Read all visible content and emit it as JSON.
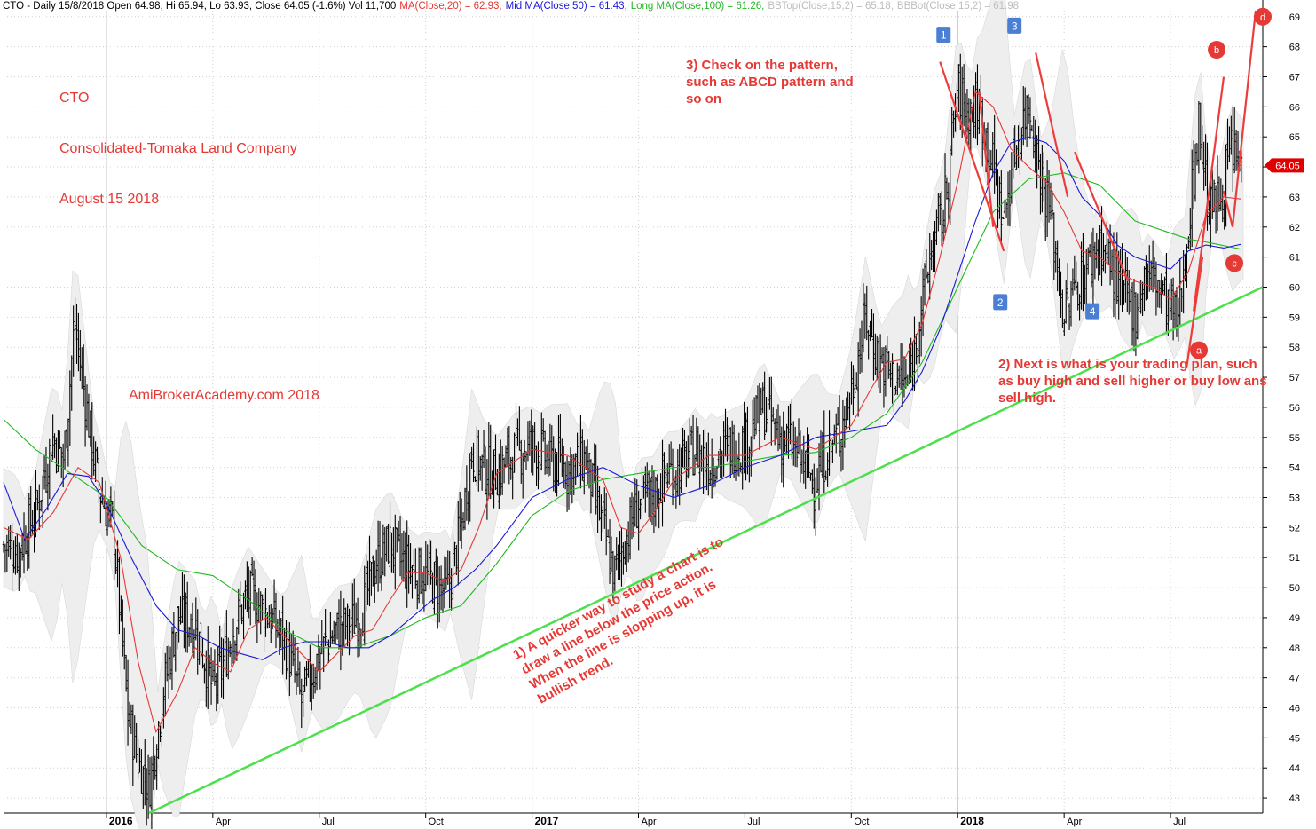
{
  "header": {
    "ticker_line": "CTO - Daily 15/8/2018 Open 64.98, Hi 65.94, Lo 63.93, Close 64.05 (-1.6%) Vol 11,700",
    "ma20": "MA(Close,20) = 62.93,",
    "ma50": "Mid MA(Close,50) = 61.43,",
    "ma100": "Long MA(Close,100) = 61.26,",
    "bbtop": "BBTop(Close,15,2) = 65.18,",
    "bbbot": "BBBot(Close,15,2) = 61.98"
  },
  "title_block": {
    "line1": "CTO",
    "line2": "Consolidated-Tomaka Land Company",
    "line3": "August 15 2018"
  },
  "watermark": "AmiBrokerAcademy.com  2018",
  "annotations": {
    "note1": "1) A quicker way to study a chart is to\ndraw a line below the price action.\nWhen the line is slopping up, it is\nbullish trend.",
    "note2": "2) Next is what is your trading plan, such\nas buy high and sell higher or buy low ans\nsell high.",
    "note3": "3) Check on the pattern,\nsuch as ABCD pattern and\nso on"
  },
  "colors": {
    "price": "#000000",
    "ma20": "#e53935",
    "ma50": "#1a1ad6",
    "ma100": "#22b822",
    "band": "#d9d9d9",
    "trendline": "#4ce04c",
    "pattern": "#ec3d3d",
    "wave_box": "#4a7fd4",
    "abcd_circle": "#e53935",
    "last_price_tag": "#e00000",
    "grid": "#d0d0d0"
  },
  "chart_data": {
    "type": "line",
    "ylim": [
      42.5,
      69.2
    ],
    "y_ticks": [
      43,
      44,
      45,
      46,
      47,
      48,
      49,
      50,
      51,
      52,
      53,
      54,
      55,
      56,
      57,
      58,
      59,
      60,
      61,
      62,
      63,
      64,
      65,
      66,
      67,
      68,
      69
    ],
    "x_ticks": [
      {
        "label": "2016",
        "x": 0.0,
        "bold": true
      },
      {
        "label": "Apr",
        "x": 3.0
      },
      {
        "label": "Jul",
        "x": 6.0
      },
      {
        "label": "Oct",
        "x": 9.0
      },
      {
        "label": "2017",
        "x": 12.0,
        "bold": true
      },
      {
        "label": "Apr",
        "x": 15.0
      },
      {
        "label": "Jul",
        "x": 18.0
      },
      {
        "label": "Oct",
        "x": 21.0
      },
      {
        "label": "2018",
        "x": 24.0,
        "bold": true
      },
      {
        "label": "Apr",
        "x": 27.0
      },
      {
        "label": "Jul",
        "x": 30.0
      }
    ],
    "xlim": [
      -2.9,
      32.6
    ],
    "x_unit": "months from Jan 2016",
    "price": {
      "x": [
        -2.9,
        -2.5,
        -2.0,
        -1.5,
        -1.2,
        -0.9,
        -0.5,
        -0.2,
        0.2,
        0.6,
        0.9,
        1.2,
        1.6,
        2.0,
        2.5,
        3.0,
        3.3,
        3.6,
        4.0,
        4.5,
        5.0,
        5.5,
        6.0,
        6.5,
        6.9,
        7.2,
        7.6,
        8.0,
        8.4,
        8.8,
        9.2,
        9.6,
        10.0,
        10.3,
        10.6,
        11.0,
        11.5,
        12.0,
        12.5,
        13.0,
        13.5,
        14.0,
        14.3,
        14.6,
        15.0,
        15.4,
        15.8,
        16.2,
        16.6,
        17.0,
        17.5,
        18.0,
        18.5,
        19.0,
        19.3,
        19.6,
        20.0,
        20.3,
        20.6,
        21.0,
        21.4,
        21.8,
        22.2,
        22.6,
        23.0,
        23.3,
        23.6,
        24.0,
        24.3,
        24.6,
        25.0,
        25.3,
        25.6,
        26.0,
        26.3,
        26.6,
        27.0,
        27.3,
        27.6,
        28.0,
        28.3,
        28.6,
        29.0,
        29.3,
        29.6,
        29.9,
        30.2,
        30.5,
        30.8,
        31.1,
        31.4,
        31.7,
        32.0,
        32.5
      ],
      "close": [
        51.4,
        51.2,
        52.5,
        55.0,
        54.2,
        58.8,
        55.5,
        53.2,
        52.0,
        45.8,
        44.2,
        43.3,
        46.5,
        49.0,
        48.8,
        46.6,
        47.5,
        48.7,
        49.8,
        49.2,
        48.3,
        46.2,
        47.8,
        48.6,
        48.8,
        49.2,
        50.8,
        51.5,
        50.8,
        50.5,
        50.2,
        49.8,
        52.0,
        54.5,
        54.0,
        53.8,
        54.5,
        54.8,
        54.2,
        54.0,
        54.3,
        52.0,
        50.4,
        51.5,
        52.8,
        53.0,
        53.8,
        54.0,
        54.6,
        54.2,
        54.6,
        54.8,
        56.0,
        55.0,
        54.8,
        54.2,
        53.5,
        54.5,
        55.0,
        56.5,
        59.0,
        57.5,
        57.0,
        56.8,
        59.5,
        61.5,
        62.5,
        66.5,
        65.8,
        66.0,
        64.0,
        62.2,
        64.5,
        66.2,
        64.0,
        62.5,
        59.0,
        60.0,
        60.5,
        61.5,
        60.8,
        59.8,
        59.2,
        60.5,
        60.2,
        59.5,
        58.8,
        62.0,
        65.5,
        62.5,
        63.0,
        64.5,
        64.05,
        64.05
      ]
    },
    "ma20": {
      "x": [
        -2.9,
        -2.2,
        -1.5,
        -0.8,
        -0.2,
        0.4,
        0.9,
        1.4,
        2.0,
        2.5,
        3.0,
        3.5,
        4.0,
        4.5,
        5.0,
        5.5,
        6.0,
        6.5,
        7.0,
        7.5,
        8.0,
        8.5,
        9.0,
        9.5,
        10.0,
        10.5,
        11.0,
        12.0,
        13.0,
        14.0,
        14.5,
        15.0,
        15.5,
        16.0,
        17.0,
        18.0,
        19.0,
        20.0,
        21.0,
        21.5,
        22.0,
        22.5,
        23.0,
        23.5,
        24.0,
        24.5,
        25.0,
        25.5,
        26.0,
        26.5,
        27.0,
        27.5,
        28.0,
        28.5,
        29.0,
        29.5,
        30.0,
        30.5,
        31.0,
        31.5,
        32.0
      ],
      "y": [
        52.0,
        51.6,
        52.5,
        54.0,
        53.5,
        51.0,
        47.5,
        45.2,
        46.5,
        48.0,
        47.5,
        47.2,
        48.6,
        49.0,
        48.4,
        47.8,
        47.2,
        47.8,
        48.4,
        48.6,
        49.6,
        50.5,
        50.5,
        50.2,
        50.6,
        52.0,
        53.8,
        54.6,
        54.4,
        53.6,
        52.0,
        51.8,
        52.6,
        53.6,
        54.4,
        54.4,
        55.0,
        54.6,
        55.4,
        56.5,
        57.5,
        57.6,
        58.8,
        61.0,
        63.5,
        66.5,
        66.0,
        64.6,
        64.0,
        63.5,
        62.5,
        61.2,
        61.0,
        60.5,
        60.2,
        60.0,
        59.6,
        60.5,
        62.4,
        63.0,
        62.93
      ]
    },
    "ma50": {
      "x": [
        -2.9,
        -2.3,
        -1.7,
        -1.1,
        -0.5,
        0.0,
        0.7,
        1.4,
        2.0,
        2.6,
        3.2,
        3.8,
        4.4,
        5.0,
        5.6,
        6.2,
        6.8,
        7.4,
        8.0,
        8.6,
        9.2,
        9.8,
        10.4,
        11.0,
        12.0,
        13.0,
        14.0,
        15.0,
        16.0,
        17.0,
        18.0,
        19.0,
        20.0,
        21.0,
        22.0,
        22.5,
        23.0,
        23.5,
        24.0,
        24.5,
        25.0,
        25.5,
        26.0,
        26.5,
        27.0,
        27.5,
        28.0,
        28.5,
        29.0,
        29.5,
        30.0,
        30.5,
        31.0,
        31.5,
        32.0
      ],
      "y": [
        53.5,
        51.6,
        52.6,
        53.8,
        53.7,
        52.8,
        51.0,
        49.4,
        48.6,
        48.4,
        48.0,
        47.8,
        47.6,
        48.0,
        48.2,
        48.2,
        48.0,
        48.0,
        48.4,
        49.0,
        49.6,
        50.0,
        50.6,
        51.4,
        53.0,
        53.6,
        54.0,
        53.4,
        53.0,
        53.4,
        54.0,
        54.4,
        55.0,
        55.2,
        55.4,
        56.2,
        57.2,
        58.6,
        60.4,
        62.2,
        63.8,
        64.8,
        65.0,
        64.8,
        64.2,
        63.0,
        62.4,
        61.4,
        61.0,
        60.8,
        60.6,
        61.2,
        61.4,
        61.3,
        61.43
      ]
    },
    "ma100": {
      "x": [
        -2.9,
        -2.0,
        -1.0,
        0.0,
        1.0,
        2.0,
        3.0,
        4.0,
        5.0,
        6.0,
        7.0,
        8.0,
        9.0,
        10.0,
        11.0,
        12.0,
        13.0,
        14.0,
        15.0,
        16.0,
        17.0,
        18.0,
        19.0,
        20.0,
        21.0,
        22.0,
        23.0,
        24.0,
        25.0,
        26.0,
        27.0,
        28.0,
        29.0,
        30.0,
        30.5,
        31.0,
        32.0
      ],
      "y": [
        55.6,
        54.6,
        53.8,
        53.0,
        51.4,
        50.6,
        50.4,
        49.6,
        48.6,
        48.0,
        48.0,
        48.4,
        49.0,
        49.4,
        50.8,
        52.4,
        53.2,
        53.6,
        53.8,
        54.0,
        54.0,
        54.2,
        54.4,
        54.5,
        55.0,
        55.8,
        57.5,
        60.0,
        62.5,
        63.6,
        63.8,
        63.4,
        62.2,
        61.8,
        61.6,
        61.5,
        61.26
      ]
    },
    "trendline": {
      "x": [
        1.2,
        32.6
      ],
      "y": [
        42.5,
        60.0
      ]
    },
    "wave_labels": [
      {
        "label": "1",
        "x": 23.6,
        "y": 68.4
      },
      {
        "label": "2",
        "x": 25.2,
        "y": 59.5
      },
      {
        "label": "3",
        "x": 25.6,
        "y": 68.7
      },
      {
        "label": "4",
        "x": 27.8,
        "y": 59.2
      }
    ],
    "abcd_labels": [
      {
        "label": "a",
        "x": 30.8,
        "y": 57.9
      },
      {
        "label": "b",
        "x": 31.3,
        "y": 67.9
      },
      {
        "label": "c",
        "x": 31.8,
        "y": 60.8
      },
      {
        "label": "d",
        "x": 32.6,
        "y": 69.0
      }
    ],
    "pattern_lines": [
      [
        [
          23.5,
          67.5
        ],
        [
          25.3,
          61.2
        ]
      ],
      [
        [
          24.6,
          66.5
        ],
        [
          25.0,
          62.0
        ]
      ],
      [
        [
          26.2,
          67.8
        ],
        [
          27.1,
          63.0
        ]
      ],
      [
        [
          27.3,
          64.5
        ],
        [
          28.8,
          60.2
        ]
      ],
      [
        [
          30.45,
          57.3
        ],
        [
          30.9,
          61.0
        ]
      ],
      [
        [
          30.65,
          59.2
        ],
        [
          31.5,
          67.0
        ]
      ],
      [
        [
          31.5,
          63.2
        ],
        [
          31.75,
          62.0
        ]
      ],
      [
        [
          31.75,
          62.0
        ],
        [
          32.4,
          69.2
        ]
      ]
    ],
    "last_price_label": "64.05",
    "last_price": 64.05
  }
}
